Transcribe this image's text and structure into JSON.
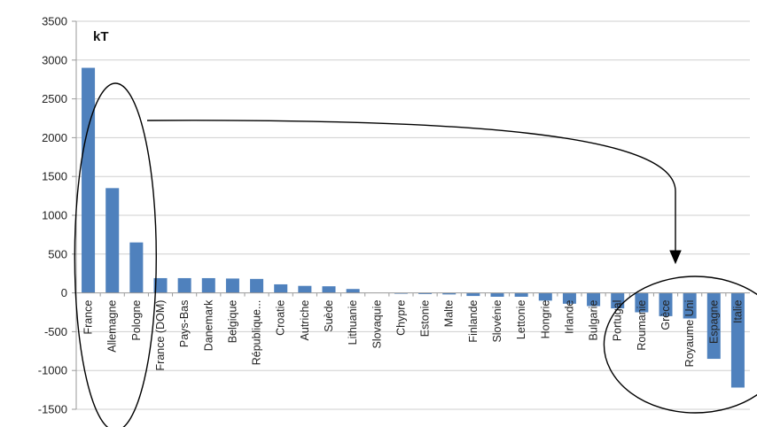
{
  "chart_data": {
    "type": "bar",
    "unit_label": "kT",
    "categories": [
      "France",
      "Allemagne",
      "Pologne",
      "France (DOM)",
      "Pays-Bas",
      "Danemark",
      "Belgique",
      "République...",
      "Croatie",
      "Autriche",
      "Suède",
      "Lithuanie",
      "Slovaquie",
      "Chypre",
      "Estonie",
      "Malte",
      "Finlande",
      "Slovénie",
      "Lettonie",
      "Hongrie",
      "Irlande",
      "Bulgarie",
      "Portugal",
      "Roumanie",
      "Grèce",
      "Royaume Uni",
      "Espagne",
      "Italie"
    ],
    "values": [
      2900,
      1350,
      650,
      190,
      190,
      190,
      185,
      180,
      110,
      90,
      85,
      50,
      0,
      -10,
      -15,
      -20,
      -40,
      -50,
      -50,
      -100,
      -140,
      -170,
      -200,
      -250,
      -300,
      -330,
      -850,
      -1220
    ],
    "ylim": [
      -1500,
      3500
    ],
    "yticks": [
      -1500,
      -1000,
      -500,
      0,
      500,
      1000,
      1500,
      2000,
      2500,
      3000,
      3500
    ],
    "ytick_labels": [
      "-1500",
      "-1000",
      "-500",
      "0",
      "500",
      "1000",
      "1500",
      "2000",
      "2500",
      "3000",
      "3500"
    ],
    "grid": true,
    "color": "#4f81bd",
    "annotations": [
      {
        "kind": "ellipse",
        "encloses": [
          "France",
          "Allemagne",
          "Pologne"
        ]
      },
      {
        "kind": "ellipse",
        "encloses": [
          "Portugal",
          "Roumanie",
          "Grèce",
          "Royaume Uni",
          "Espagne",
          "Italie"
        ]
      },
      {
        "kind": "arrow",
        "from": "ellipse-left",
        "to": "ellipse-right"
      }
    ]
  }
}
